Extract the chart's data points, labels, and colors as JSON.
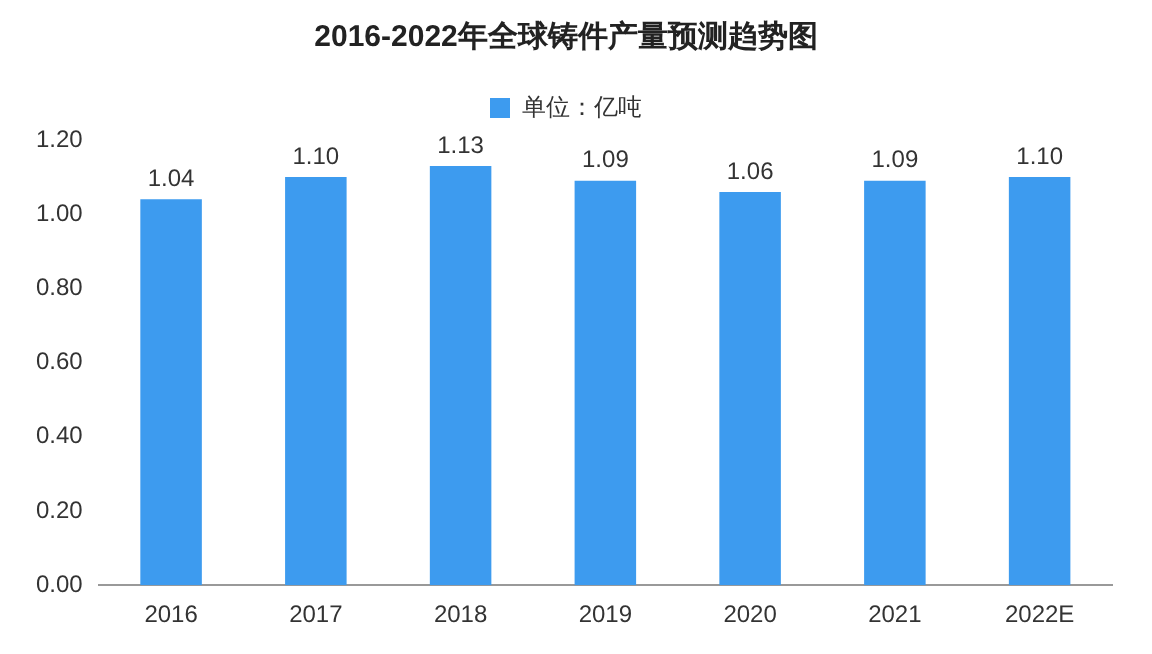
{
  "chart_data": {
    "type": "bar",
    "title": "2016-2022年全球铸件产量预测趋势图",
    "categories": [
      "2016",
      "2017",
      "2018",
      "2019",
      "2020",
      "2021",
      "2022E"
    ],
    "series": [
      {
        "name": "单位：亿吨",
        "color": "#3d9bef",
        "values": [
          1.04,
          1.1,
          1.13,
          1.09,
          1.06,
          1.09,
          1.1
        ]
      }
    ],
    "ylim": [
      0,
      1.2
    ],
    "yticks": [
      {
        "value": 0,
        "label": "0.00"
      },
      {
        "value": 0.2,
        "label": "0.20"
      },
      {
        "value": 0.4,
        "label": "0.40"
      },
      {
        "value": 0.6,
        "label": "0.60"
      },
      {
        "value": 0.8,
        "label": "0.80"
      },
      {
        "value": 1.0,
        "label": "1.00"
      },
      {
        "value": 1.2,
        "label": "1.20"
      }
    ],
    "value_labels": [
      "1.04",
      "1.10",
      "1.13",
      "1.09",
      "1.06",
      "1.09",
      "1.10"
    ],
    "legend": "top",
    "grid": false
  }
}
